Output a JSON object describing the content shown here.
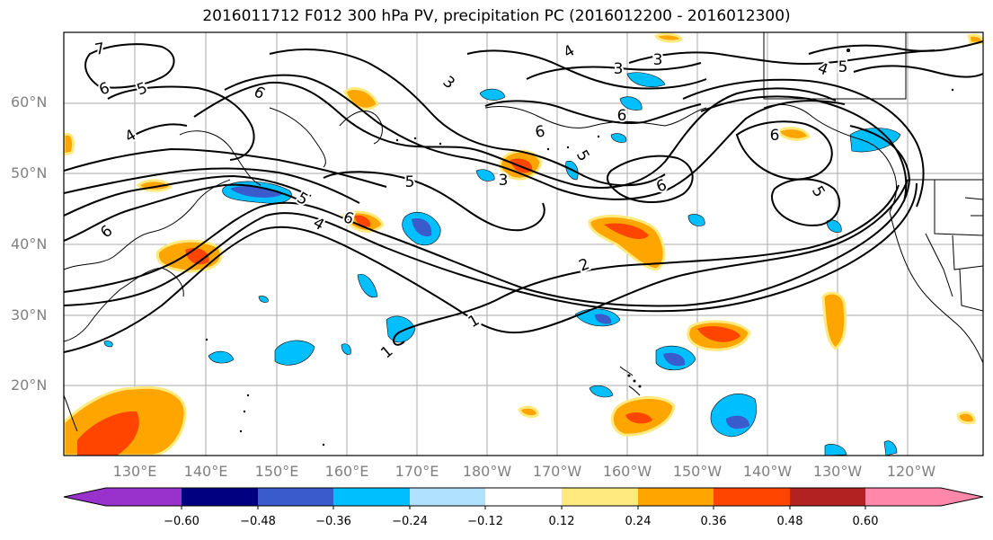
{
  "title": "2016011712 F012 300 hPa PV, precipitation PC (2016012200 - 2016012300)",
  "lat_labels": [
    "60°N",
    "50°N",
    "40°N",
    "30°N",
    "20°N"
  ],
  "lon_labels": [
    "130°E",
    "140°E",
    "150°E",
    "160°E",
    "170°E",
    "180°W",
    "170°W",
    "160°W",
    "150°W",
    "140°W",
    "130°W",
    "120°W"
  ],
  "colorbar": {
    "ticks": [
      "−0.60",
      "−0.48",
      "−0.36",
      "−0.24",
      "−0.12",
      "0.12",
      "0.24",
      "0.36",
      "0.48",
      "0.60"
    ],
    "colors": [
      "#9932cc",
      "#000080",
      "#3a5bcc",
      "#00bfff",
      "#b0e2ff",
      "#ffffff",
      "#ffea80",
      "#ffa500",
      "#ff4500",
      "#b22222",
      "#ff88aa"
    ]
  },
  "contour_labels": [
    "7",
    "6",
    "5",
    "4",
    "6",
    "5",
    "4",
    "3",
    "3",
    "2",
    "1",
    "1",
    "6",
    "5",
    "6",
    "6",
    "3",
    "5",
    "6",
    "4",
    "3",
    "4",
    "5",
    "6",
    "5",
    "6"
  ]
}
